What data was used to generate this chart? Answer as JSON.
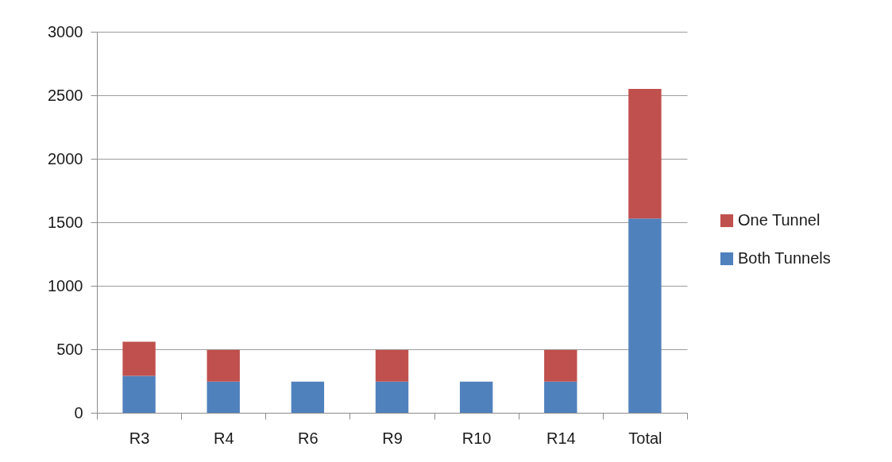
{
  "chart_data": {
    "type": "bar",
    "stacked": true,
    "categories": [
      "R3",
      "R4",
      "R6",
      "R9",
      "R10",
      "R14",
      "Total"
    ],
    "series": [
      {
        "name": "Both Tunnels",
        "color": "#4f81bd",
        "values": [
          290,
          245,
          245,
          245,
          245,
          245,
          1530
        ]
      },
      {
        "name": "One Tunnel",
        "color": "#c0504d",
        "values": [
          270,
          250,
          null,
          250,
          null,
          250,
          1020
        ]
      }
    ],
    "ylim": [
      0,
      3000
    ],
    "yticks": [
      0,
      500,
      1000,
      1500,
      2000,
      2500,
      3000
    ],
    "grid": "y",
    "legend": "right"
  }
}
